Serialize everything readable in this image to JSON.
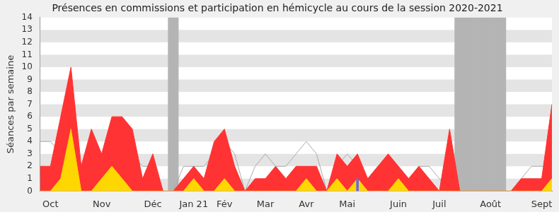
{
  "chart_data": {
    "type": "line",
    "title": "Présences en commissions et participation en hémicycle au cours de la session 2020-2021",
    "y_label": "Séances par semaine",
    "categories": [
      null,
      "Oct",
      null,
      null,
      null,
      null,
      "Nov",
      null,
      null,
      null,
      null,
      "Déc",
      null,
      null,
      null,
      "Jan 21",
      null,
      null,
      "Fév",
      null,
      null,
      null,
      "Mar",
      null,
      null,
      null,
      "Avr",
      null,
      null,
      null,
      "Mai",
      null,
      null,
      null,
      null,
      "Juin",
      null,
      null,
      null,
      "Juil",
      null,
      null,
      null,
      null,
      "Août",
      null,
      null,
      null,
      null,
      "Sept",
      null
    ],
    "series": [
      {
        "type": "band",
        "color": "#b4b4b4",
        "values": [
          null,
          null,
          null,
          null,
          null,
          null,
          null,
          null,
          null,
          null,
          null,
          null,
          null,
          14,
          null,
          null,
          null,
          null,
          null,
          null,
          null,
          null,
          null,
          null,
          null,
          null,
          null,
          null,
          null,
          null,
          null,
          null,
          null,
          null,
          null,
          null,
          null,
          null,
          null,
          null,
          null,
          14,
          14,
          14,
          14,
          14,
          null,
          null,
          null,
          null,
          null
        ]
      },
      {
        "type": "line",
        "color": "#aaaaaa",
        "values": [
          4,
          4,
          3,
          3,
          2,
          3,
          3,
          3,
          2,
          3,
          2,
          2,
          0,
          0,
          2,
          2,
          2,
          3,
          4,
          3,
          0,
          2,
          3,
          2,
          2,
          3,
          4,
          3,
          0,
          2,
          3,
          2,
          1,
          2,
          2,
          2,
          1,
          2,
          2,
          1,
          0,
          0,
          0,
          0,
          0,
          0,
          0,
          1,
          2,
          2,
          2
        ]
      },
      {
        "type": "area",
        "color": "#ff3333",
        "values": [
          2,
          2,
          6,
          10,
          2,
          5,
          3,
          6,
          6,
          5,
          1,
          3,
          0,
          0,
          1,
          2,
          1,
          4,
          5,
          2,
          0,
          1,
          1,
          2,
          1,
          2,
          2,
          2,
          0,
          3,
          2,
          3,
          1,
          2,
          3,
          2,
          1,
          2,
          1,
          0,
          5,
          0,
          0,
          0,
          0,
          0,
          0,
          1,
          1,
          1,
          7
        ]
      },
      {
        "type": "area",
        "color": "#ffd700",
        "values": [
          0,
          0,
          1,
          5,
          0,
          0,
          1,
          2,
          1,
          0,
          0,
          0,
          0,
          0,
          0,
          1,
          0,
          0,
          1,
          0,
          0,
          0,
          0,
          0,
          0,
          0,
          1,
          0,
          0,
          1,
          0,
          1,
          0,
          0,
          0,
          1,
          0,
          0,
          0,
          0,
          0,
          0,
          0,
          0,
          0,
          0,
          0,
          0,
          0,
          0,
          1
        ]
      },
      {
        "type": "bar",
        "color": "#6666ee",
        "values": [
          null,
          null,
          null,
          null,
          null,
          null,
          null,
          null,
          null,
          null,
          null,
          null,
          null,
          null,
          null,
          null,
          null,
          null,
          null,
          null,
          null,
          null,
          null,
          null,
          null,
          null,
          null,
          null,
          null,
          null,
          null,
          1,
          null,
          null,
          null,
          null,
          null,
          null,
          null,
          null,
          null,
          null,
          null,
          null,
          null,
          null,
          null,
          null,
          null,
          null,
          null
        ]
      }
    ],
    "ylim": [
      0,
      14
    ],
    "yticks": [
      0,
      1,
      2,
      3,
      4,
      5,
      6,
      7,
      8,
      9,
      10,
      11,
      12,
      13,
      14
    ],
    "grid": true
  }
}
